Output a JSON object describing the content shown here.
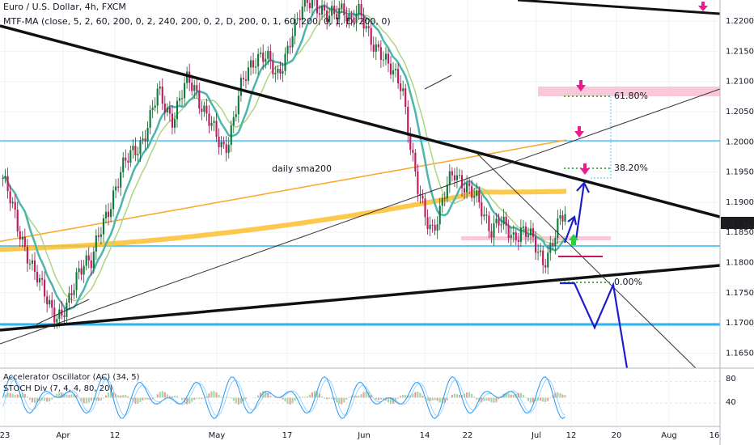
{
  "header": {
    "symbol_title": "Euro / U.S. Dollar, 4h, FXCM",
    "indicator_label": "MTF-MA (close, 5, 2, 60, 200, 0, 2, 240, 200, 0, 2, D, 200, 0, 1, 60, 200, 0, 1, D, 200, 0)"
  },
  "annotations": {
    "sma_label": "daily sma200",
    "fib_618": "61.80%",
    "fib_382": "38.20%",
    "fib_0": "0.00%"
  },
  "price_axis": {
    "ticks": [
      "1.22000",
      "1.21500",
      "1.21000",
      "1.20500",
      "1.20000",
      "1.19500",
      "1.19000",
      "1.18500",
      "1.18000",
      "1.17500",
      "1.17000",
      "1.16500"
    ],
    "last_price": "1.18749"
  },
  "lower_pane": {
    "ac_label": "Accelerator Oscillator (AC) (34, 5)",
    "stoch_label": "STOCH Div (7, 4, 4, 80, 20)",
    "ticks": [
      "80",
      "40"
    ]
  },
  "time_axis": [
    "23",
    "Apr",
    "12",
    "May",
    "17",
    "Jun",
    "14",
    "22",
    "Jul",
    "12",
    "20",
    "Aug",
    "16"
  ],
  "colors": {
    "up_candle": "#26a69a",
    "down_candle": "#ef5350",
    "candle_body_up": "#0b7a3e",
    "candle_body_down": "#c2185b",
    "ma_fast": "#4db6ac",
    "ma_slow": "#aed581",
    "sma200": "#f9a825",
    "sma200_thick": "#fbc02d",
    "trend_black": "#111111",
    "hline_blue": "#29b6f6",
    "arrow_blue": "#1e1ec8",
    "magenta": "#e91e8c",
    "pink_zone": "#f8bbd0",
    "fib_green": "#2e7d32",
    "fib_dots": "#4caf50",
    "stoch_line": "#2196f3"
  },
  "chart_data": {
    "type": "candlestick",
    "title": "Euro / U.S. Dollar, 4h, FXCM",
    "ylim": [
      1.1625,
      1.2235
    ],
    "x_labels": [
      "23",
      "Apr",
      "12",
      "May",
      "17",
      "Jun",
      "14",
      "22",
      "Jul",
      "12",
      "20",
      "Aug",
      "16"
    ],
    "last_price": 1.18749,
    "horizontal_levels": [
      1.201,
      1.1837,
      1.1708
    ],
    "fib_levels": [
      {
        "label": "61.80%",
        "value": 1.2082
      },
      {
        "label": "38.20%",
        "value": 1.1968
      },
      {
        "label": "0.00%",
        "value": 1.1778
      }
    ],
    "close_path": [
      1.194,
      1.19,
      1.186,
      1.183,
      1.179,
      1.176,
      1.174,
      1.172,
      1.171,
      1.173,
      1.178,
      1.181,
      1.18,
      1.184,
      1.188,
      1.192,
      1.195,
      1.197,
      1.199,
      1.201,
      1.204,
      1.208,
      1.206,
      1.204,
      1.207,
      1.21,
      1.209,
      1.206,
      1.203,
      1.2,
      1.199,
      1.203,
      1.208,
      1.211,
      1.214,
      1.215,
      1.213,
      1.21,
      1.214,
      1.218,
      1.22,
      1.223,
      1.224,
      1.222,
      1.22,
      1.221,
      1.223,
      1.22,
      1.221,
      1.219,
      1.217,
      1.215,
      1.212,
      1.211,
      1.21,
      1.2,
      1.192,
      1.188,
      1.186,
      1.188,
      1.192,
      1.195,
      1.194,
      1.192,
      1.19,
      1.188,
      1.186,
      1.187,
      1.185,
      1.184,
      1.186,
      1.185,
      1.182,
      1.18,
      1.183,
      1.186,
      1.1875
    ]
  }
}
